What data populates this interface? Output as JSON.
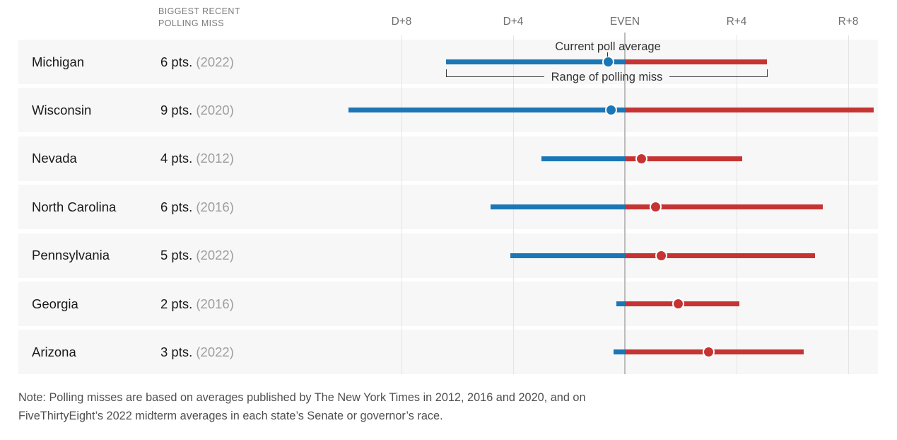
{
  "header": {
    "line1": "BIGGEST RECENT",
    "line2": "POLLING MISS"
  },
  "chart_data": {
    "type": "dumbbell",
    "title": "",
    "column_header": "BIGGEST RECENT POLLING MISS",
    "x_axis": {
      "position": "top",
      "unit": "margin in percentage points (negative = D advantage, positive = R advantage)",
      "range": [
        -10,
        9.2
      ],
      "ticks": [
        {
          "label": "D+8",
          "value": -8
        },
        {
          "label": "D+4",
          "value": -4
        },
        {
          "label": "EVEN",
          "value": 0
        },
        {
          "label": "R+4",
          "value": 4
        },
        {
          "label": "R+8",
          "value": 8
        }
      ]
    },
    "rows": [
      {
        "state": "Michigan",
        "miss_label": "6 pts.",
        "miss_year": "(2022)",
        "poll_avg": -0.6,
        "range": [
          -6.4,
          5.1
        ],
        "leader": "dem"
      },
      {
        "state": "Wisconsin",
        "miss_label": "9 pts.",
        "miss_year": "(2020)",
        "poll_avg": -0.5,
        "range": [
          -9.9,
          8.9
        ],
        "leader": "dem"
      },
      {
        "state": "Nevada",
        "miss_label": "4 pts.",
        "miss_year": "(2012)",
        "poll_avg": 0.6,
        "range": [
          -3.0,
          4.2
        ],
        "leader": "rep"
      },
      {
        "state": "North Carolina",
        "miss_label": "6 pts.",
        "miss_year": "(2016)",
        "poll_avg": 1.1,
        "range": [
          -4.8,
          7.1
        ],
        "leader": "rep"
      },
      {
        "state": "Pennsylvania",
        "miss_label": "5 pts.",
        "miss_year": "(2022)",
        "poll_avg": 1.3,
        "range": [
          -4.1,
          6.8
        ],
        "leader": "rep"
      },
      {
        "state": "Georgia",
        "miss_label": "2 pts.",
        "miss_year": "(2016)",
        "poll_avg": 1.9,
        "range": [
          -0.3,
          4.1
        ],
        "leader": "rep"
      },
      {
        "state": "Arizona",
        "miss_label": "3 pts.",
        "miss_year": "(2022)",
        "poll_avg": 3.0,
        "range": [
          -0.4,
          6.4
        ],
        "leader": "rep"
      }
    ],
    "annotations": {
      "dot": "Current poll average",
      "bracket": "Range of polling miss"
    },
    "colors": {
      "dem": "#1b76b5",
      "rep": "#c53432",
      "dot_ring": "#ffffff",
      "band_bg": "#f7f7f7",
      "gridline": "#e4e4e4",
      "gridline_even": "#bcbcbc"
    },
    "legend": "none",
    "grid": "vertical gridlines at labeled ticks only"
  },
  "note": {
    "line1": "Note: Polling misses are based on averages published by The New York Times in 2012, 2016 and 2020, and on",
    "line2": "FiveThirtyEight’s 2022 midterm averages in each state’s Senate or governor’s race."
  }
}
